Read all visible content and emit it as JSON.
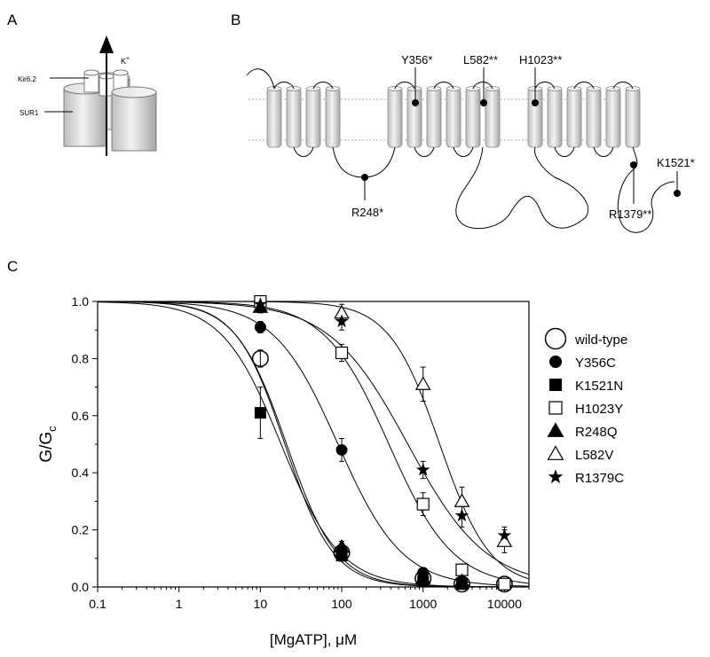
{
  "panels": {
    "a": {
      "letter": "A",
      "kir_label": "Kir6.2",
      "sur_label": "SUR1",
      "ion_label": "K",
      "ion_charge": "+"
    },
    "b": {
      "letter": "B",
      "mutations": [
        {
          "id": "r248",
          "label": "R248*"
        },
        {
          "id": "y356",
          "label": "Y356*"
        },
        {
          "id": "l582",
          "label": "L582**"
        },
        {
          "id": "h1023",
          "label": "H1023**"
        },
        {
          "id": "r1379",
          "label": "R1379**"
        },
        {
          "id": "k1521",
          "label": "K1521*"
        }
      ]
    },
    "c": {
      "letter": "C"
    }
  },
  "chart_data": {
    "type": "scatter",
    "xscale": "log",
    "xlim": [
      0.1,
      20000
    ],
    "ylim": [
      0,
      1.0
    ],
    "xlabel_main": "[MgATP], ",
    "xlabel_unit": "μM",
    "ylabel_main": "G/G",
    "ylabel_sub": "c",
    "x_ticks": [
      "0.1",
      "1",
      "10",
      "100",
      "1000",
      "10000"
    ],
    "y_ticks": [
      "0.0",
      "0.2",
      "0.4",
      "0.6",
      "0.8",
      "1.0"
    ],
    "legend_position": "right",
    "series": [
      {
        "name": "wild-type",
        "marker": "open-circle",
        "x": [
          10,
          100,
          1000,
          3000,
          10000
        ],
        "y": [
          0.8,
          0.12,
          0.03,
          0.01,
          0.01
        ],
        "err": [
          0.03,
          0.02,
          0.01,
          0.01,
          0.005
        ],
        "fit": {
          "ic50": 20,
          "h": 1.45
        }
      },
      {
        "name": "Y356C",
        "marker": "filled-circle",
        "x": [
          10,
          100,
          1000,
          3000
        ],
        "y": [
          0.91,
          0.48,
          0.05,
          0.02
        ],
        "err": [
          0.02,
          0.04,
          0.01,
          0.01
        ],
        "fit": {
          "ic50": 90,
          "h": 1.1
        }
      },
      {
        "name": "K1521N",
        "marker": "filled-square",
        "x": [
          10,
          100,
          1000,
          3000
        ],
        "y": [
          0.61,
          0.11,
          0.02,
          0.01
        ],
        "err": [
          0.09,
          0.02,
          0.01,
          0.01
        ],
        "fit": {
          "ic50": 18,
          "h": 1.2
        }
      },
      {
        "name": "H1023Y",
        "marker": "open-square",
        "x": [
          10,
          100,
          1000,
          3000,
          10000
        ],
        "y": [
          1.0,
          0.82,
          0.29,
          0.06,
          0.01
        ],
        "err": [
          0.01,
          0.03,
          0.04,
          0.02,
          0.01
        ],
        "fit": {
          "ic50": 380,
          "h": 1.1
        }
      },
      {
        "name": "R248Q",
        "marker": "filled-triangle",
        "x": [
          10,
          100,
          1000,
          3000
        ],
        "y": [
          0.98,
          0.14,
          0.03,
          0.02
        ],
        "err": [
          0.02,
          0.02,
          0.01,
          0.01
        ],
        "fit": {
          "ic50": 21,
          "h": 1.4
        }
      },
      {
        "name": "L582V",
        "marker": "open-triangle",
        "x": [
          100,
          1000,
          3000,
          10000
        ],
        "y": [
          0.96,
          0.71,
          0.3,
          0.16
        ],
        "err": [
          0.03,
          0.06,
          0.05,
          0.04
        ],
        "fit": {
          "ic50": 1600,
          "h": 1.4
        }
      },
      {
        "name": "R1379C",
        "marker": "filled-star",
        "x": [
          10,
          100,
          1000,
          3000,
          10000
        ],
        "y": [
          0.99,
          0.93,
          0.41,
          0.25,
          0.18
        ],
        "err": [
          0.01,
          0.03,
          0.03,
          0.04,
          0.03
        ],
        "fit": {
          "ic50": 650,
          "h": 0.9
        }
      }
    ]
  }
}
